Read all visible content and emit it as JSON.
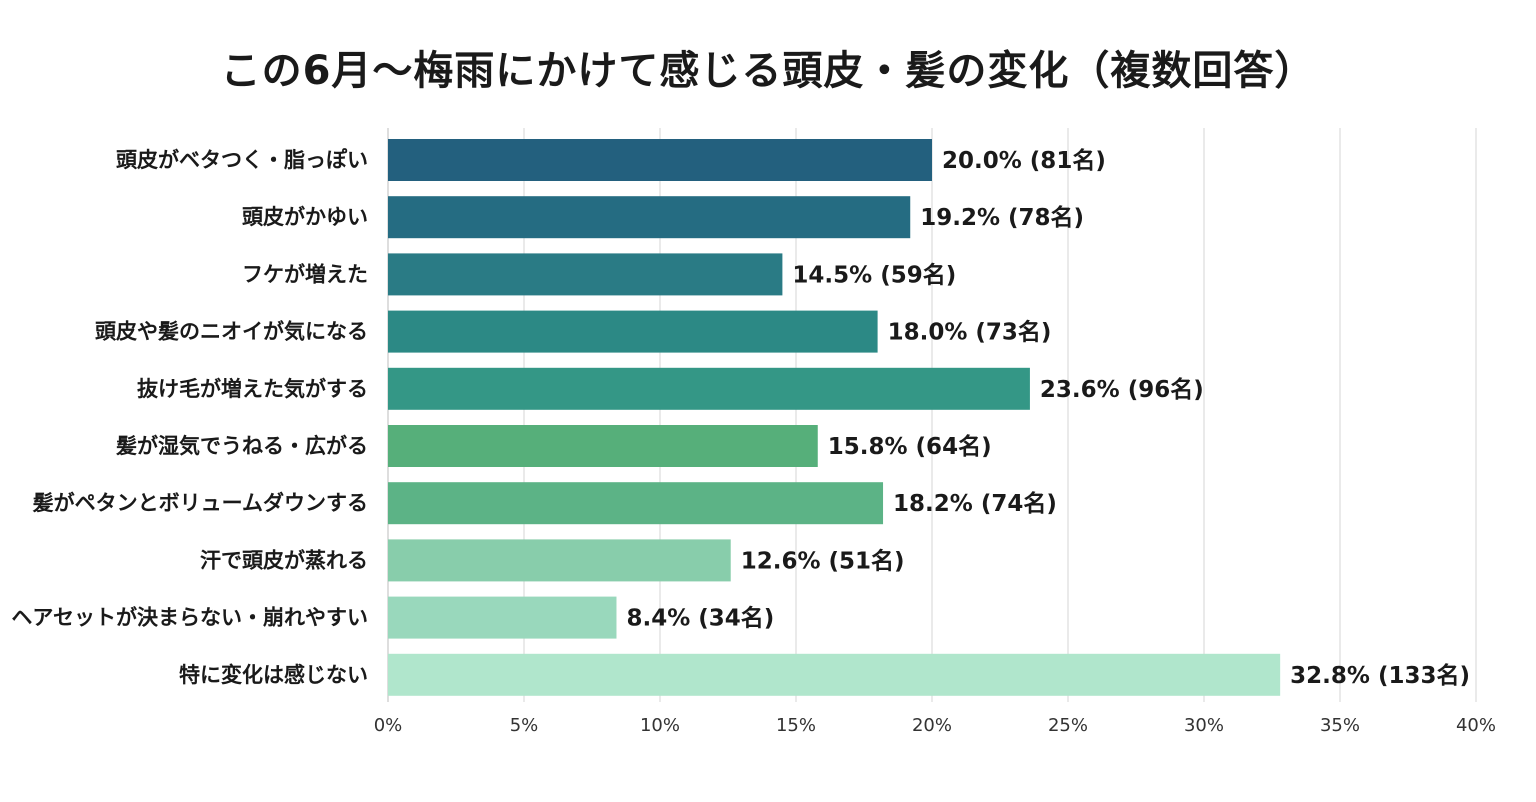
{
  "chart_data": {
    "type": "bar",
    "orientation": "horizontal",
    "title": "この6月〜梅雨にかけて感じる頭皮・髪の変化（複数回答）",
    "categories": [
      "頭皮がベタつく・脂っぽい",
      "頭皮がかゆい",
      "フケが増えた",
      "頭皮や髪のニオイが気になる",
      "抜け毛が増えた気がする",
      "髪が湿気でうねる・広がる",
      "髪がペタンとボリュームダウンする",
      "汗で頭皮が蒸れる",
      "ヘアセットが決まらない・崩れやすい",
      "特に変化は感じない"
    ],
    "values": [
      20.0,
      19.2,
      14.5,
      18.0,
      23.6,
      15.8,
      18.2,
      12.6,
      8.4,
      32.8
    ],
    "data_labels": [
      "20.0% (81名)",
      "19.2% (78名)",
      "14.5% (59名)",
      "18.0% (73名)",
      "23.6% (96名)",
      "15.8% (64名)",
      "18.2% (74名)",
      "12.6% (51名)",
      "8.4% (34名)",
      "32.8% (133名)"
    ],
    "bar_colors": [
      "#23607e",
      "#256c82",
      "#2a7b85",
      "#2c8985",
      "#349786",
      "#56af7a",
      "#5cb386",
      "#88cdab",
      "#99d8bc",
      "#b0e6cc"
    ],
    "xlim": [
      0,
      40
    ],
    "x_ticks": [
      0,
      5,
      10,
      15,
      20,
      25,
      30,
      35,
      40
    ],
    "x_tick_labels": [
      "0%",
      "5%",
      "10%",
      "15%",
      "20%",
      "25%",
      "30%",
      "35%",
      "40%"
    ],
    "grid": true,
    "xlabel": "",
    "ylabel": ""
  }
}
